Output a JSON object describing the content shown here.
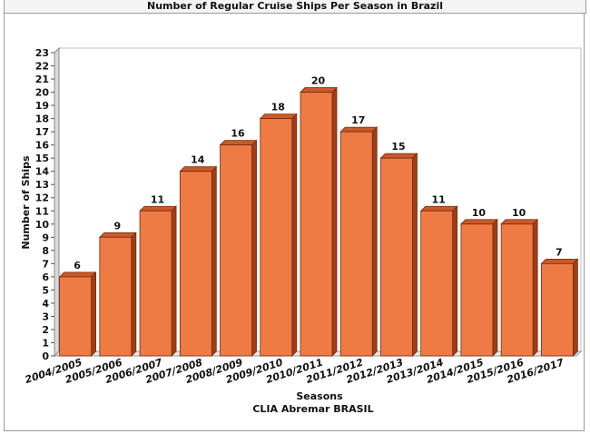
{
  "chart_data": {
    "type": "bar",
    "title": "Number of Regular Cruise Ships Per Season in Brazil",
    "xlabel": "Seasons",
    "ylabel": "Number of Ships",
    "source": "CLIA Abremar BRASIL",
    "categories": [
      "2004/2005",
      "2005/2006",
      "2006/2007",
      "2007/2008",
      "2008/2009",
      "2009/2010",
      "2010/2011",
      "2011/2012",
      "2012/2013",
      "2013/2014",
      "2014/2015",
      "2015/2016",
      "2016/2017"
    ],
    "values": [
      6,
      9,
      11,
      14,
      16,
      18,
      20,
      17,
      15,
      11,
      10,
      10,
      7
    ],
    "ylim": [
      0,
      23
    ],
    "ytick_step": 1,
    "grid": false,
    "legend": "none",
    "colors": {
      "bar_front": "#ee7a44",
      "bar_top": "#c85a2a",
      "bar_side": "#9e3e18",
      "bar_edge": "#7a2a0c",
      "axis": "#555555",
      "wall": "#ffffff"
    }
  }
}
